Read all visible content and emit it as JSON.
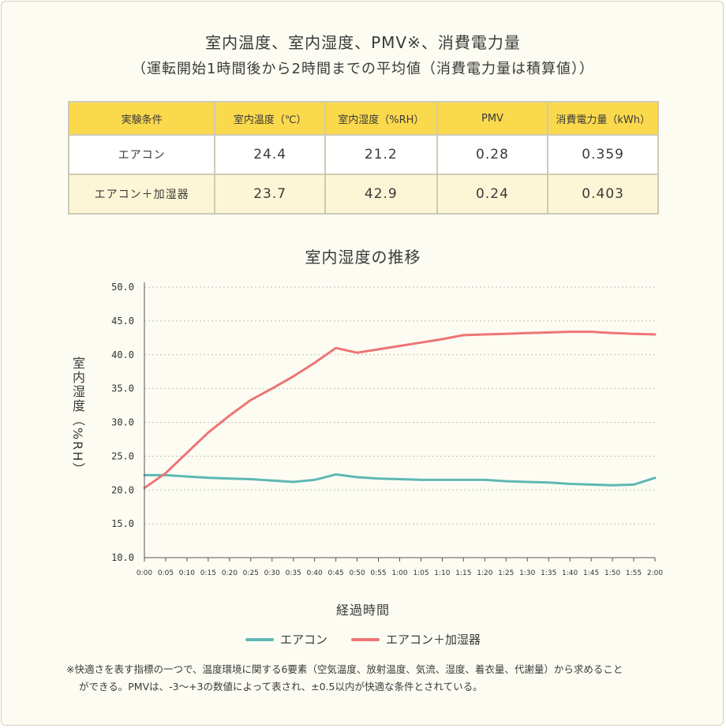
{
  "title": {
    "line1": "室内温度、室内湿度、PMV※、消費電力量",
    "line2": "（運転開始1時間後から2時間までの平均値（消費電力量は積算値））"
  },
  "table": {
    "headers": [
      "実験条件",
      "室内温度（℃）",
      "室内湿度（%RH）",
      "PMV",
      "消費電力量（kWh）"
    ],
    "rows": [
      [
        "エアコン",
        "24.4",
        "21.2",
        "0.28",
        "0.359"
      ],
      [
        "エアコン＋加湿器",
        "23.7",
        "42.9",
        "0.24",
        "0.403"
      ]
    ]
  },
  "colors": {
    "aircon": "#5fb8b4",
    "aircon_humidifier": "#ee7474",
    "header_bg": "#fbd94c"
  },
  "chart_data": {
    "type": "line",
    "title": "室内湿度の推移",
    "xlabel": "経過時間",
    "ylabel": "室内湿度（%RH）",
    "ylim": [
      10,
      50
    ],
    "yticks": [
      "10.0",
      "15.0",
      "20.0",
      "25.0",
      "30.0",
      "35.0",
      "40.0",
      "45.0",
      "50.0"
    ],
    "categories": [
      "0:00",
      "0:05",
      "0:10",
      "0:15",
      "0:20",
      "0:25",
      "0:30",
      "0:35",
      "0:40",
      "0:45",
      "0:50",
      "0:55",
      "1:00",
      "1:05",
      "1:10",
      "1:15",
      "1:20",
      "1:25",
      "1:30",
      "1:35",
      "1:40",
      "1:45",
      "1:50",
      "1:55",
      "2:00"
    ],
    "grid": "horizontal dotted",
    "legend_position": "bottom",
    "series": [
      {
        "name": "エアコン",
        "values": [
          22.2,
          22.2,
          22.0,
          21.8,
          21.7,
          21.6,
          21.4,
          21.2,
          21.5,
          22.3,
          21.9,
          21.7,
          21.6,
          21.5,
          21.5,
          21.5,
          21.5,
          21.3,
          21.2,
          21.1,
          20.9,
          20.8,
          20.7,
          20.8,
          21.8
        ]
      },
      {
        "name": "エアコン＋加湿器",
        "values": [
          20.3,
          22.5,
          25.5,
          28.5,
          31.0,
          33.3,
          35.0,
          36.8,
          38.8,
          41.0,
          40.3,
          40.8,
          41.3,
          41.8,
          42.3,
          42.9,
          43.0,
          43.1,
          43.2,
          43.3,
          43.4,
          43.4,
          43.2,
          43.1,
          43.0
        ]
      }
    ]
  },
  "legend": {
    "items": [
      "エアコン",
      "エアコン＋加湿器"
    ]
  },
  "footnote": {
    "line1": "※快適さを表す指標の一つで、温度環境に関する6要素（空気温度、放射温度、気流、湿度、着衣量、代謝量）から求めること",
    "line2": "ができる。PMVは、-3～+3の数値によって表され、±0.5以内が快適な条件とされている。"
  }
}
